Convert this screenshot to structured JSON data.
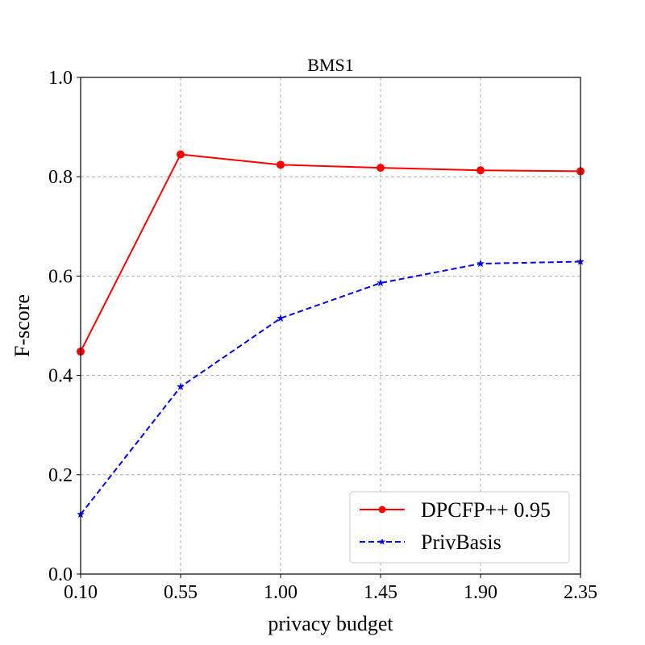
{
  "chart_data": {
    "type": "line",
    "title": "BMS1",
    "xlabel": "privacy budget",
    "ylabel": "F-score",
    "x": [
      0.1,
      0.55,
      1.0,
      1.45,
      1.9,
      2.35
    ],
    "x_tick_labels": [
      "0.10",
      "0.55",
      "1.00",
      "1.45",
      "1.90",
      "2.35"
    ],
    "y_ticks": [
      0.0,
      0.2,
      0.4,
      0.6,
      0.8,
      1.0
    ],
    "y_tick_labels": [
      "0.0",
      "0.2",
      "0.4",
      "0.6",
      "0.8",
      "1.0"
    ],
    "xlim": [
      0.1,
      2.35
    ],
    "ylim": [
      0.0,
      1.0
    ],
    "grid": true,
    "legend_position": "bottom-right",
    "series": [
      {
        "name": "DPCFP++ 0.95",
        "values": [
          0.448,
          0.845,
          0.824,
          0.818,
          0.813,
          0.811
        ],
        "color": "#ff0000",
        "line_style": "solid",
        "marker": "circle"
      },
      {
        "name": "PrivBasis",
        "values": [
          0.12,
          0.377,
          0.515,
          0.586,
          0.625,
          0.629
        ],
        "color": "#0000ff",
        "line_style": "dashed",
        "marker": "star"
      }
    ]
  }
}
